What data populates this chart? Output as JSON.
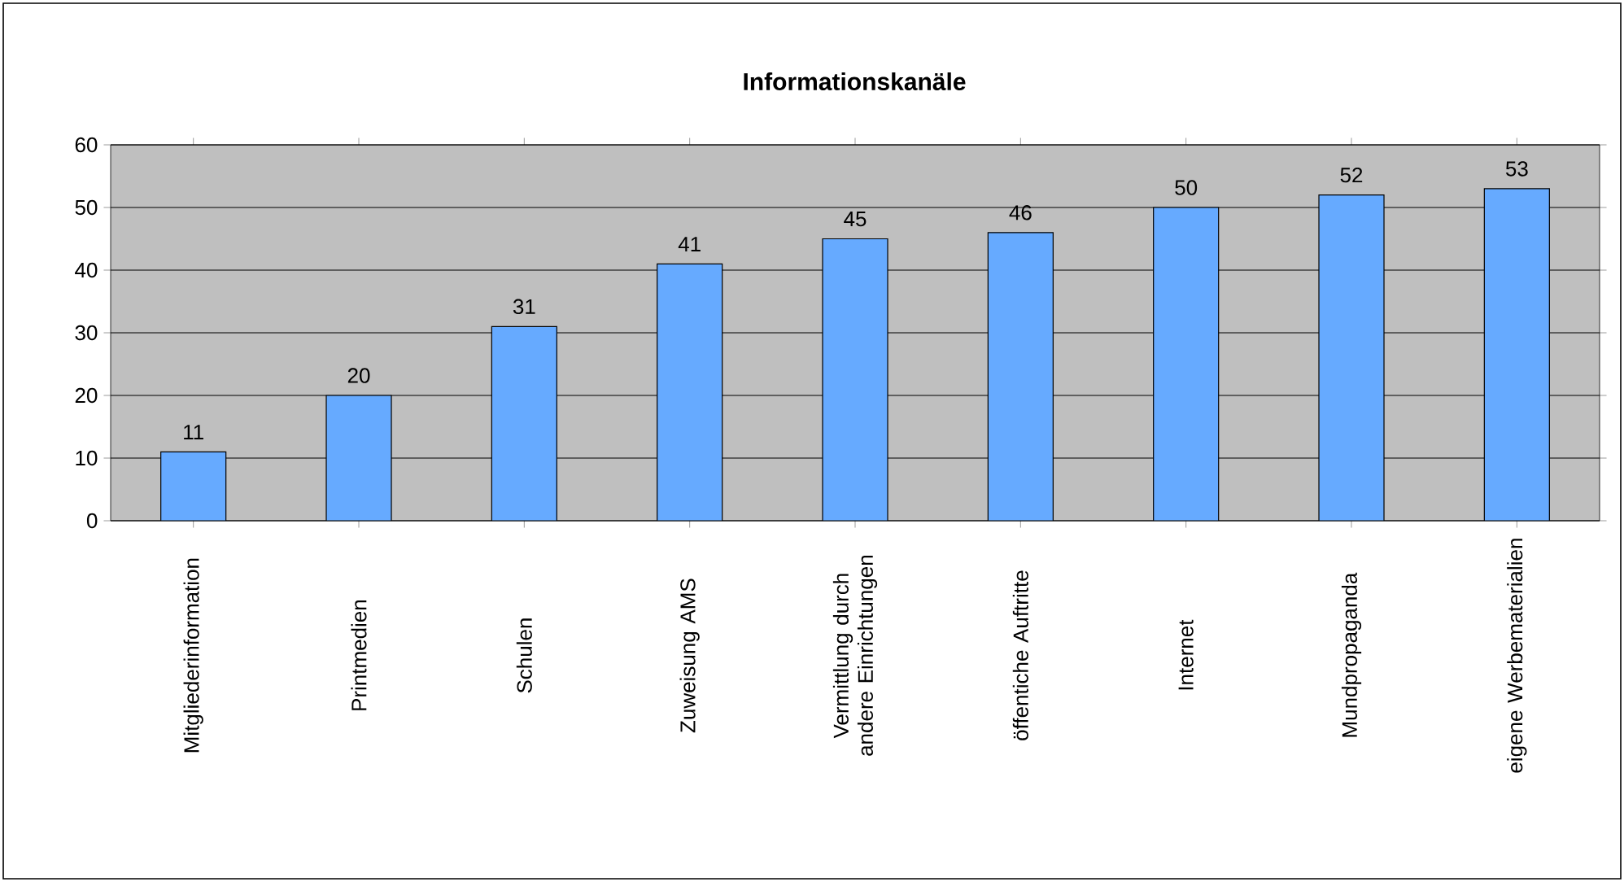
{
  "chart_data": {
    "type": "bar",
    "title": "Informationskanäle",
    "categories": [
      "Mitgliederinformation",
      "Printmedien",
      "Schulen",
      "Zuweisung AMS",
      "Vermittlung durch andere Einrichtungen",
      "öffentiche Auftritte",
      "Internet",
      "Mundpropaganda",
      "eigene Werbematerialien"
    ],
    "values": [
      11,
      20,
      31,
      41,
      45,
      46,
      50,
      52,
      53
    ],
    "color": "#66aaff",
    "ylim": [
      0,
      60
    ],
    "yticks": [
      0,
      10,
      20,
      30,
      40,
      50,
      60
    ],
    "grid": "y",
    "data_labels": true
  }
}
